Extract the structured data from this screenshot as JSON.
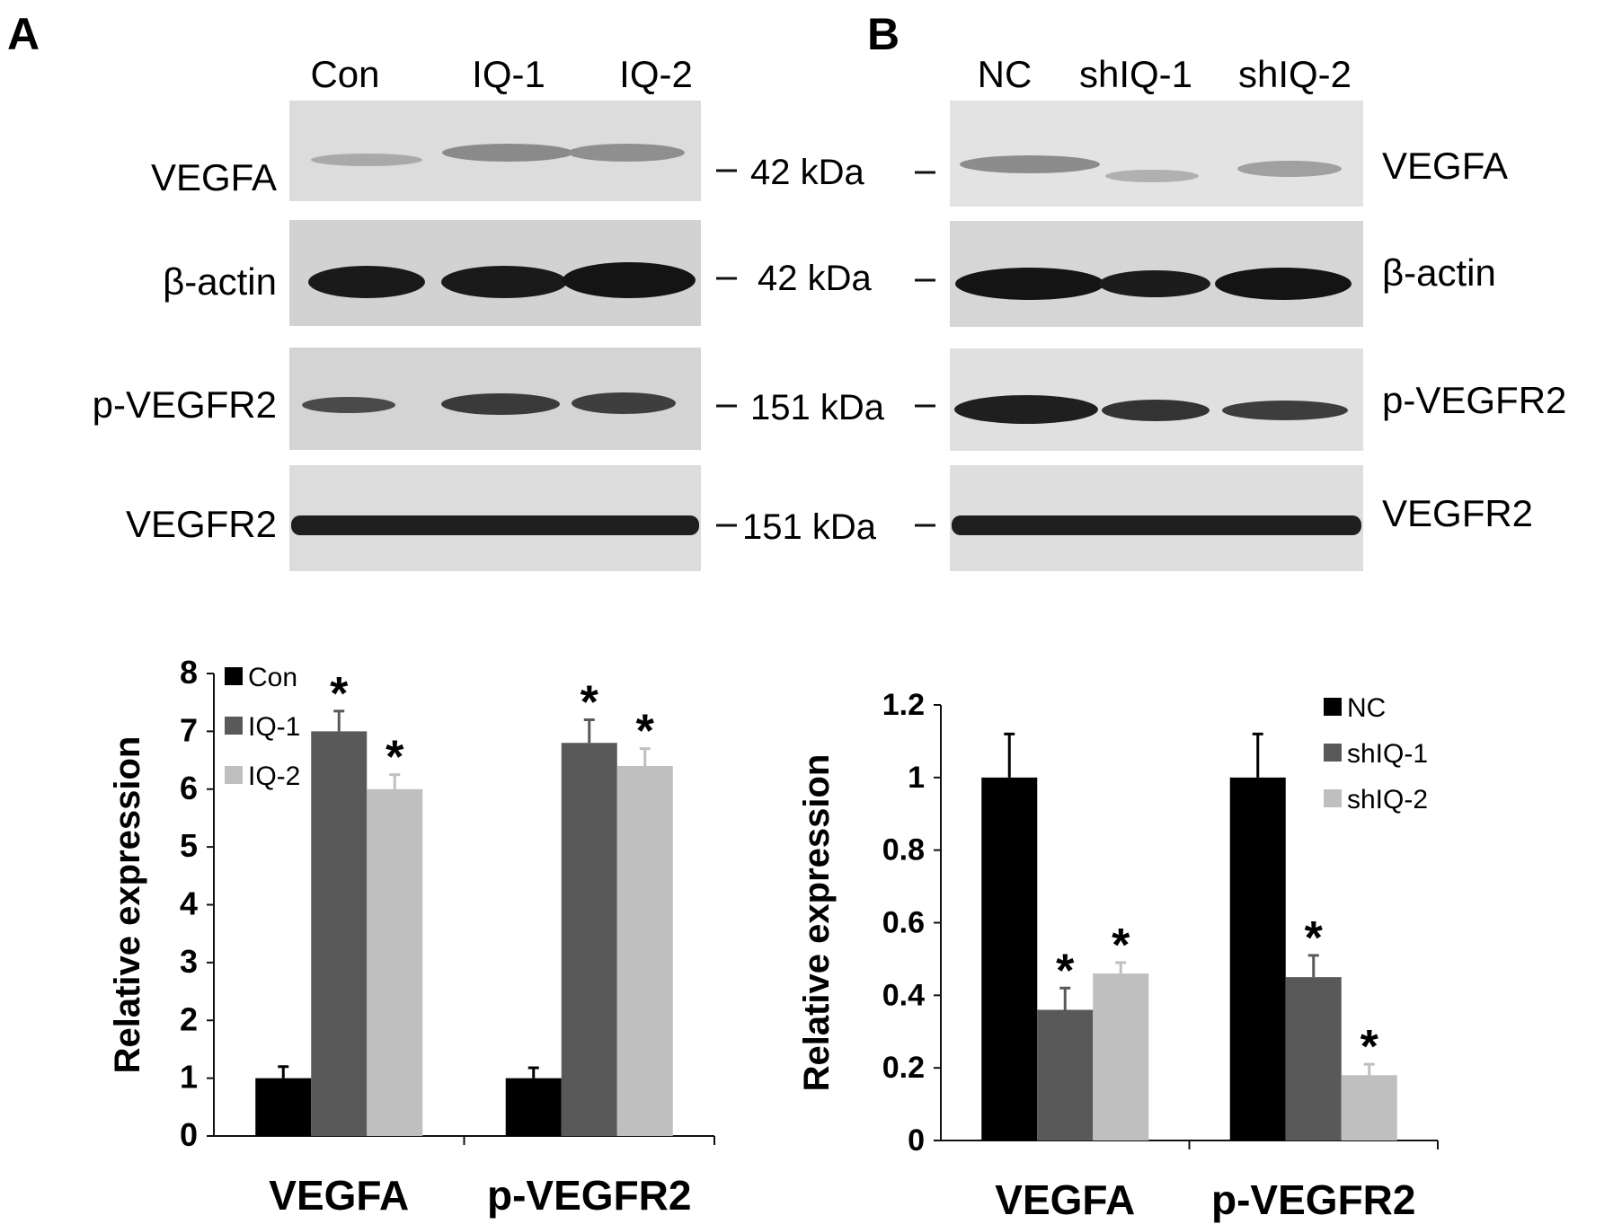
{
  "panels": [
    {
      "letter": "A",
      "lanes": [
        "Con",
        "IQ-1",
        "IQ-2"
      ],
      "bands": [
        {
          "label": "VEGFA",
          "mw": "42 kDa"
        },
        {
          "label": "β-actin",
          "mw": "42 kDa"
        },
        {
          "label": "p-VEGFR2",
          "mw": "151 kDa"
        },
        {
          "label": "VEGFR2",
          "mw": "151 kDa"
        }
      ]
    },
    {
      "letter": "B",
      "lanes": [
        "NC",
        "shIQ-1",
        "shIQ-2"
      ],
      "bands": [
        {
          "label": "VEGFA"
        },
        {
          "label": "β-actin"
        },
        {
          "label": "p-VEGFR2"
        },
        {
          "label": "VEGFR2"
        }
      ]
    }
  ],
  "colors": {
    "series1": "#000000",
    "series2": "#595959",
    "series3": "#bfbfbf"
  },
  "chart_data": [
    {
      "type": "bar",
      "categories": [
        "VEGFA",
        "p-VEGFR2"
      ],
      "ylabel": "Relative expression",
      "ylim": [
        0,
        8
      ],
      "yticks": [
        "0",
        "1",
        "2",
        "3",
        "4",
        "5",
        "6",
        "7",
        "8"
      ],
      "legend": "top-left",
      "series": [
        {
          "name": "Con",
          "values": [
            1.0,
            1.0
          ],
          "errors": [
            0.2,
            0.18
          ],
          "marks": [
            "",
            ""
          ]
        },
        {
          "name": "IQ-1",
          "values": [
            7.0,
            6.8
          ],
          "errors": [
            0.35,
            0.4
          ],
          "marks": [
            "*",
            "*"
          ]
        },
        {
          "name": "IQ-2",
          "values": [
            6.0,
            6.4
          ],
          "errors": [
            0.25,
            0.3
          ],
          "marks": [
            "*",
            "*"
          ]
        }
      ]
    },
    {
      "type": "bar",
      "categories": [
        "VEGFA",
        "p-VEGFR2"
      ],
      "ylabel": "Relative expression",
      "ylim": [
        0,
        1.2
      ],
      "yticks": [
        "0",
        "0.2",
        "0.4",
        "0.6",
        "0.8",
        "1",
        "1.2"
      ],
      "legend": "top-right",
      "series": [
        {
          "name": "NC",
          "values": [
            1.0,
            1.0
          ],
          "errors": [
            0.12,
            0.12
          ],
          "marks": [
            "",
            ""
          ]
        },
        {
          "name": "shIQ-1",
          "values": [
            0.36,
            0.45
          ],
          "errors": [
            0.06,
            0.06
          ],
          "marks": [
            "*",
            "*"
          ]
        },
        {
          "name": "shIQ-2",
          "values": [
            0.46,
            0.18
          ],
          "errors": [
            0.03,
            0.03
          ],
          "marks": [
            "*",
            "*"
          ]
        }
      ]
    }
  ]
}
